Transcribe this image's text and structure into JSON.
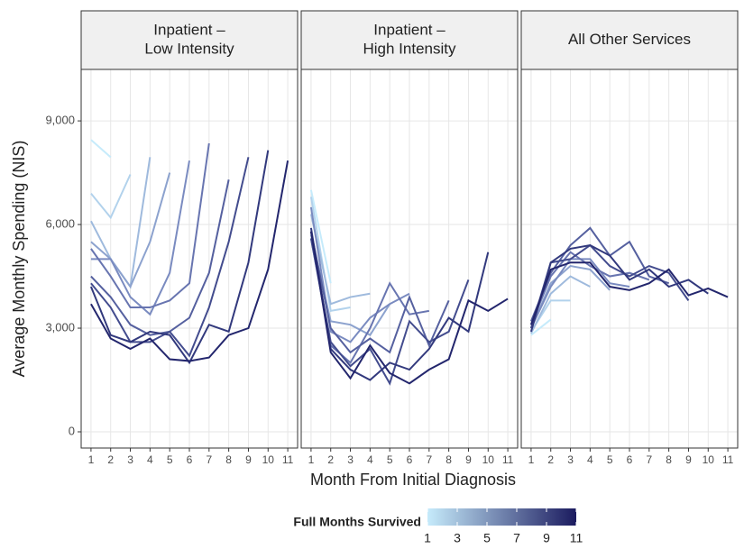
{
  "chart_data": {
    "type": "line",
    "x_label": "Month From Initial Diagnosis",
    "y_label": "Average Monthly Spending (NIS)",
    "x": [
      1,
      2,
      3,
      4,
      5,
      6,
      7,
      8,
      9,
      10,
      11
    ],
    "xlim": [
      0.5,
      11.5
    ],
    "xticks": [
      1,
      2,
      3,
      4,
      5,
      6,
      7,
      8,
      9,
      10,
      11
    ],
    "ylim": [
      -470,
      10490
    ],
    "yticks": [
      0,
      {
        "value": 3000,
        "label": "3,000"
      },
      {
        "value": 6000,
        "label": "6,000"
      },
      {
        "value": 9000,
        "label": "9,000"
      }
    ],
    "grid": true,
    "legend": {
      "title": "Full Months Survived",
      "range": [
        1,
        11
      ],
      "ticks": [
        1,
        3,
        5,
        7,
        9,
        11
      ],
      "colors": [
        "#c6ebfb",
        "#1b1b5f"
      ],
      "position": "bottom"
    },
    "facets": [
      {
        "title": [
          "Inpatient –",
          "Low Intensity"
        ],
        "series": [
          {
            "color": "#c6ebfb",
            "values": [
              8450,
              7950,
              null,
              null,
              null,
              null,
              null,
              null,
              null,
              null,
              null
            ]
          },
          {
            "color": "#b2d2ec",
            "values": [
              6900,
              6200,
              7450,
              null,
              null,
              null,
              null,
              null,
              null,
              null,
              null
            ]
          },
          {
            "color": "#9fbadd",
            "values": [
              6100,
              5000,
              4200,
              7950,
              null,
              null,
              null,
              null,
              null,
              null,
              null
            ]
          },
          {
            "color": "#8ca2ce",
            "values": [
              5500,
              5000,
              4200,
              5500,
              7500,
              null,
              null,
              null,
              null,
              null,
              null
            ]
          },
          {
            "color": "#7a8bc0",
            "values": [
              5000,
              5000,
              3900,
              3400,
              4600,
              7850,
              null,
              null,
              null,
              null,
              null
            ]
          },
          {
            "color": "#6875b0",
            "values": [
              5300,
              4500,
              3600,
              3600,
              3800,
              4300,
              8350,
              null,
              null,
              null,
              null
            ]
          },
          {
            "color": "#55609f",
            "values": [
              4500,
              3900,
              3100,
              2800,
              2900,
              3300,
              4600,
              7300,
              null,
              null,
              null
            ]
          },
          {
            "color": "#434c8e",
            "values": [
              4300,
              3600,
              2600,
              2600,
              2900,
              2200,
              3600,
              5500,
              7950,
              null,
              null
            ]
          },
          {
            "color": "#32397d",
            "values": [
              4200,
              2800,
              2600,
              2900,
              2800,
              2000,
              3100,
              2900,
              4900,
              8150,
              null
            ]
          },
          {
            "color": "#23266d",
            "values": [
              3700,
              2700,
              2400,
              2700,
              2100,
              2050,
              2150,
              2800,
              3000,
              4700,
              7850
            ]
          }
        ]
      },
      {
        "title": [
          "Inpatient –",
          "High Intensity"
        ],
        "series": [
          {
            "color": "#c6ebfb",
            "values": [
              7000,
              4300,
              null,
              null,
              null,
              null,
              null,
              null,
              null,
              null,
              null
            ]
          },
          {
            "color": "#b2d2ec",
            "values": [
              6800,
              3500,
              3600,
              null,
              null,
              null,
              null,
              null,
              null,
              null,
              null
            ]
          },
          {
            "color": "#9fbadd",
            "values": [
              6300,
              3700,
              3900,
              4000,
              null,
              null,
              null,
              null,
              null,
              null,
              null
            ]
          },
          {
            "color": "#8ca2ce",
            "values": [
              5700,
              3200,
              3100,
              2800,
              3700,
              null,
              null,
              null,
              null,
              null,
              null
            ]
          },
          {
            "color": "#7a8bc0",
            "values": [
              6500,
              2900,
              2600,
              3300,
              3700,
              4000,
              null,
              null,
              null,
              null,
              null
            ]
          },
          {
            "color": "#6875b0",
            "values": [
              5600,
              2500,
              2000,
              3000,
              4300,
              3400,
              3500,
              null,
              null,
              null,
              null
            ]
          },
          {
            "color": "#55609f",
            "values": [
              5800,
              3000,
              2300,
              2700,
              2300,
              3900,
              2500,
              3800,
              null,
              null,
              null
            ]
          },
          {
            "color": "#434c8e",
            "values": [
              5600,
              2600,
              1900,
              2400,
              1400,
              3200,
              2600,
              2900,
              4400,
              null,
              null
            ]
          },
          {
            "color": "#32397d",
            "values": [
              5900,
              2400,
              1800,
              1500,
              2000,
              1800,
              2400,
              3300,
              2900,
              5200,
              null
            ]
          },
          {
            "color": "#23266d",
            "values": [
              5800,
              2300,
              1550,
              2500,
              1700,
              1400,
              1800,
              2100,
              3800,
              3500,
              3850
            ]
          }
        ]
      },
      {
        "title": [
          "All Other Services"
        ],
        "series": [
          {
            "color": "#c6ebfb",
            "values": [
              2800,
              3250,
              null,
              null,
              null,
              null,
              null,
              null,
              null,
              null,
              null
            ]
          },
          {
            "color": "#b2d2ec",
            "values": [
              2900,
              3800,
              3800,
              null,
              null,
              null,
              null,
              null,
              null,
              null,
              null
            ]
          },
          {
            "color": "#9fbadd",
            "values": [
              2850,
              4000,
              4500,
              4200,
              null,
              null,
              null,
              null,
              null,
              null,
              null
            ]
          },
          {
            "color": "#8ca2ce",
            "values": [
              3000,
              4300,
              4800,
              4700,
              4100,
              null,
              null,
              null,
              null,
              null,
              null
            ]
          },
          {
            "color": "#7a8bc0",
            "values": [
              3000,
              4200,
              5000,
              5000,
              4300,
              4200,
              null,
              null,
              null,
              null,
              null
            ]
          },
          {
            "color": "#6875b0",
            "values": [
              3100,
              4500,
              5200,
              4800,
              4500,
              4600,
              4400,
              null,
              null,
              null,
              null
            ]
          },
          {
            "color": "#55609f",
            "values": [
              3200,
              4600,
              5400,
              5900,
              5100,
              5500,
              4500,
              4300,
              null,
              null,
              null
            ]
          },
          {
            "color": "#434c8e",
            "values": [
              3000,
              4900,
              5000,
              5400,
              4800,
              4500,
              4800,
              4600,
              3800,
              null,
              null
            ]
          },
          {
            "color": "#32397d",
            "values": [
              2900,
              4900,
              5300,
              5400,
              5100,
              4400,
              4700,
              4200,
              4400,
              4000,
              null
            ]
          },
          {
            "color": "#23266d",
            "values": [
              3100,
              4700,
              4900,
              4900,
              4200,
              4100,
              4300,
              4700,
              3950,
              4150,
              3900
            ]
          }
        ]
      }
    ]
  }
}
